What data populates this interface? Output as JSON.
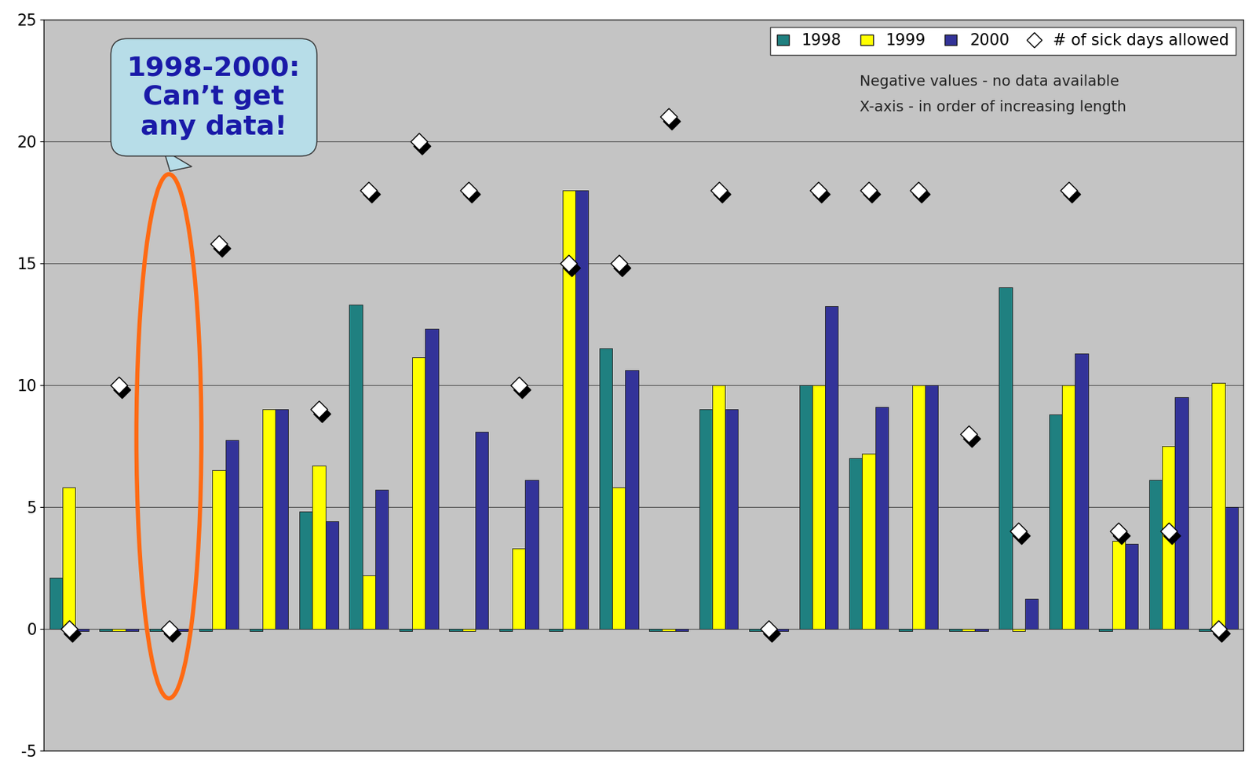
{
  "chart_data": {
    "type": "bar",
    "categories": [
      null,
      null,
      null,
      null,
      null,
      null,
      null,
      null,
      null,
      null,
      null,
      null,
      null,
      null,
      null,
      null,
      null,
      null,
      null,
      null,
      null,
      null,
      null,
      null
    ],
    "series": [
      {
        "name": "1998",
        "type": "bar",
        "color": "#1f8080",
        "values": [
          2.1,
          -0.1,
          -0.1,
          -0.1,
          -0.1,
          4.8,
          13.3,
          -0.1,
          -0.1,
          -0.1,
          -0.1,
          11.5,
          -0.1,
          9,
          -0.1,
          10,
          7,
          -0.1,
          -0.1,
          14,
          8.8,
          -0.1,
          6.1,
          -0.1
        ]
      },
      {
        "name": "1999",
        "type": "bar",
        "color": "#ffff00",
        "values": [
          5.8,
          -0.1,
          -0.1,
          6.5,
          9,
          6.7,
          2.2,
          11.15,
          -0.1,
          3.3,
          18,
          5.8,
          -0.1,
          10,
          -0.1,
          10,
          7.2,
          10,
          -0.1,
          -0.1,
          10,
          3.6,
          7.5,
          10.1
        ]
      },
      {
        "name": "2000",
        "type": "bar",
        "color": "#333399",
        "values": [
          -0.1,
          -0.1,
          -0.1,
          7.75,
          9,
          4.4,
          5.7,
          12.3,
          8.1,
          6.1,
          18,
          10.6,
          -0.1,
          9,
          -0.1,
          13.25,
          9.1,
          10,
          -0.1,
          1.25,
          11.3,
          3.5,
          9.5,
          5
        ]
      },
      {
        "name": "# of sick days allowed",
        "type": "scatter",
        "marker": "diamond",
        "color": "#ffffff",
        "values": [
          0,
          10,
          0,
          15.8,
          null,
          9,
          18,
          20,
          18,
          10,
          15,
          15,
          21,
          18,
          0,
          18,
          18,
          18,
          8,
          4,
          18,
          4,
          4,
          0
        ]
      }
    ],
    "annotations": [
      "Negative values - no data available",
      "X-axis - in order of increasing length",
      "1998-2000:\nCan’t get\nany data!"
    ],
    "ylim": [
      -5,
      25
    ],
    "yticks": [
      -5,
      0,
      5,
      10,
      15,
      20,
      25
    ],
    "grid": true,
    "legend": "upper right",
    "tick_labels": "y"
  }
}
